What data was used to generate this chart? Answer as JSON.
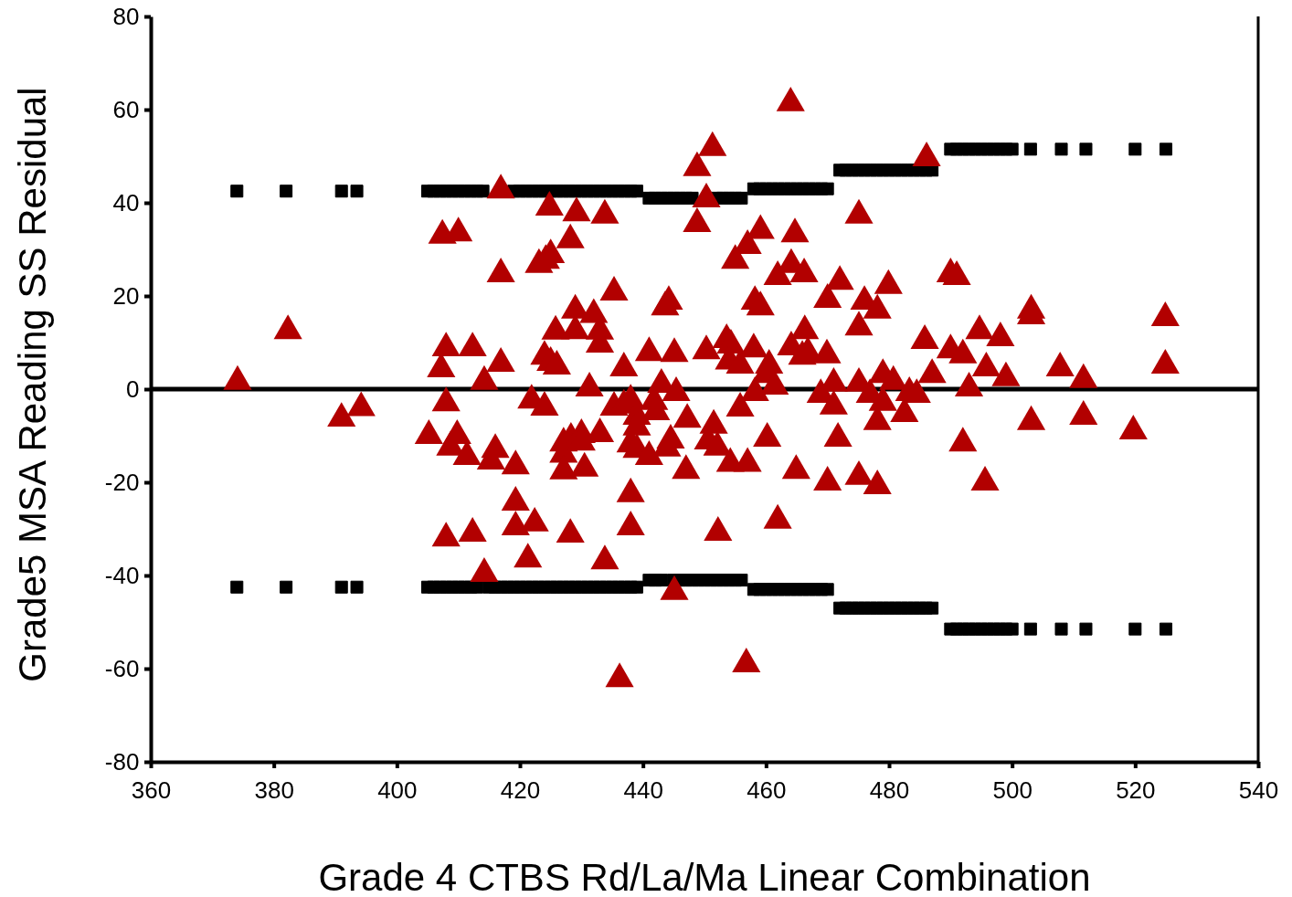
{
  "chart_data": {
    "type": "scatter",
    "xlabel": "Grade 4 CTBS Rd/La/Ma Linear Combination",
    "ylabel": "Grade5 MSA Reading SS Residual",
    "xlim": [
      360,
      540
    ],
    "ylim": [
      -80,
      80
    ],
    "xticks": [
      360,
      380,
      400,
      420,
      440,
      460,
      480,
      500,
      520,
      540
    ],
    "yticks": [
      -80,
      -60,
      -40,
      -20,
      0,
      20,
      40,
      60,
      80
    ],
    "grid": false,
    "ref_lines": [
      {
        "axis": "y",
        "value": 0,
        "color": "#000000",
        "line_style": "solid"
      }
    ],
    "series": [
      {
        "marker": "triangle",
        "color": "#b20000",
        "x": [
          374.1,
          382.3,
          391,
          394.2,
          405.2,
          407.2,
          407.4,
          410,
          408,
          408,
          408.7,
          409.8,
          408,
          412.3,
          411.4,
          412.3,
          414.2,
          415.3,
          416,
          414.2,
          416.9,
          416.9,
          416.9,
          419.3,
          419.3,
          419.3,
          422.4,
          421.3,
          421.9,
          424,
          423.1,
          424.2,
          425,
          424.8,
          424,
          425,
          426,
          425.8,
          428.2,
          429.2,
          429,
          429,
          427.1,
          427.1,
          427.1,
          428.3,
          430,
          430.5,
          428.2,
          430,
          431.3,
          432,
          433,
          433,
          433,
          433.8,
          435.3,
          433.8,
          436.9,
          435.3,
          436.9,
          438,
          439,
          438,
          439,
          439,
          438,
          438,
          436.2,
          441,
          441,
          441.8,
          442.1,
          443,
          443.6,
          444.2,
          443.9,
          444.5,
          445.4,
          445.1,
          445.1,
          447.2,
          447,
          448.8,
          448.8,
          450.3,
          450.3,
          451.3,
          450.6,
          451.5,
          452.1,
          452.2,
          453.6,
          454.3,
          454,
          455,
          455.8,
          455.8,
          454.2,
          457,
          457,
          456.8,
          458,
          458.2,
          459.1,
          459.1,
          458.2,
          460,
          460.5,
          461.4,
          460.2,
          461.9,
          461.9,
          464,
          464.1,
          464.7,
          466.2,
          464.1,
          465.9,
          466.3,
          464.9,
          466.8,
          468.9,
          470,
          469.9,
          470,
          471,
          471,
          472,
          471.7,
          475.1,
          475.1,
          475.1,
          476,
          475.1,
          476.9,
          478.1,
          478.1,
          478.1,
          479,
          479,
          479.9,
          480.7,
          482.5,
          483.3,
          485.8,
          486.1,
          487,
          484.5,
          490,
          491,
          490,
          492,
          492,
          493,
          494.7,
          495.8,
          495.6,
          498.1,
          499,
          503.1,
          503.1,
          503.1,
          507.8,
          511.6,
          511.6,
          519.7,
          524.9,
          524.9
        ],
        "values": [
          1.6,
          12.5,
          -6.3,
          -4,
          -10,
          4.3,
          33,
          33.5,
          8.8,
          -3,
          -12.5,
          -10,
          -32,
          8.8,
          -14.5,
          -31,
          1.6,
          -15.5,
          -13,
          -39.6,
          42.7,
          24.7,
          5.5,
          -16.5,
          -24.3,
          -29.6,
          -28.8,
          -36.5,
          -2.4,
          -3.9,
          26.7,
          27.6,
          28.8,
          39,
          7,
          5.7,
          4.9,
          12.4,
          32,
          37.8,
          16.9,
          12.5,
          -11.6,
          -14,
          -17.6,
          -10.6,
          -9.8,
          -17,
          -31.2,
          -11.4,
          0.2,
          16,
          12.4,
          9.6,
          -9.6,
          37.3,
          20.8,
          -36.9,
          4.5,
          -3.9,
          -3.5,
          -2.4,
          -5.9,
          -11.8,
          -8.2,
          -13,
          -22.5,
          -29.6,
          -62.2,
          7.8,
          -14.5,
          -2.7,
          -4.9,
          1,
          17.6,
          18.8,
          -12.7,
          -11,
          -0.8,
          7.6,
          -43.5,
          -6.5,
          -17.5,
          35.5,
          47.5,
          8.2,
          40.8,
          51.8,
          -11.2,
          -7.8,
          -12.5,
          -30.8,
          10.6,
          9.4,
          6,
          27.6,
          5.1,
          -4.1,
          -16,
          -16,
          30.8,
          -59,
          8.6,
          18.8,
          17.6,
          34,
          -0.8,
          3.1,
          5.1,
          0.6,
          -10.6,
          -28.2,
          24.1,
          61.4,
          26.7,
          33.3,
          24.7,
          9,
          7,
          12.5,
          -17.5,
          7.8,
          -1.2,
          19.2,
          7.3,
          -20,
          1.2,
          -3.7,
          23.1,
          -10.6,
          13.3,
          37.3,
          1.2,
          18.8,
          -18.8,
          -1.2,
          16.9,
          -7,
          -20.8,
          3.1,
          -2.9,
          22.2,
          1.6,
          -5.3,
          -0.8,
          10.4,
          49.6,
          3.1,
          -1.2,
          24.7,
          24.1,
          8.4,
          7.3,
          -11.6,
          0.2,
          12.5,
          4.5,
          -20,
          11,
          2.4,
          16.9,
          15.7,
          -7,
          4.5,
          2,
          -5.9,
          -9,
          15.3,
          5.1
        ]
      },
      {
        "marker": "square",
        "color": "#000000",
        "x": [
          374,
          382,
          391,
          393.5,
          405,
          406,
          407,
          408,
          409,
          410,
          411,
          412,
          413,
          414,
          419,
          420,
          421,
          422,
          423,
          424,
          425,
          426,
          427,
          428,
          429,
          430,
          431,
          432,
          433,
          434,
          435,
          436,
          437,
          438,
          439,
          441,
          442,
          443,
          444,
          445,
          446,
          447,
          448,
          452,
          453,
          454,
          455,
          456,
          458,
          459,
          460,
          461,
          462,
          463,
          464,
          465,
          466,
          467,
          468,
          469,
          470,
          472,
          473,
          474,
          475,
          476,
          477,
          478,
          479,
          480,
          481,
          482,
          483,
          484,
          485,
          486,
          487,
          490,
          491,
          492,
          493,
          494,
          495,
          496,
          497,
          498,
          499,
          500,
          503,
          508,
          512,
          520,
          525
        ],
        "values": [
          42.5,
          42.5,
          42.5,
          42.5,
          42.5,
          42.5,
          42.5,
          42.5,
          42.5,
          42.5,
          42.5,
          42.5,
          42.5,
          42.5,
          42.5,
          42.5,
          42.5,
          42.5,
          42.5,
          42.5,
          42.5,
          42.5,
          42.5,
          42.5,
          42.5,
          42.5,
          42.5,
          42.5,
          42.5,
          42.5,
          42.5,
          42.5,
          42.5,
          42.5,
          42.5,
          41,
          41,
          41,
          41,
          41,
          41,
          41,
          41,
          41,
          41,
          41,
          41,
          41,
          43,
          43,
          43,
          43,
          43,
          43,
          43,
          43,
          43,
          43,
          43,
          43,
          43,
          47,
          47,
          47,
          47,
          47,
          47,
          47,
          47,
          47,
          47,
          47,
          47,
          47,
          47,
          47,
          47,
          51.5,
          51.5,
          51.5,
          51.5,
          51.5,
          51.5,
          51.5,
          51.5,
          51.5,
          51.5,
          51.5,
          51.5,
          51.5,
          51.5,
          51.5,
          51.5
        ]
      },
      {
        "marker": "square",
        "color": "#000000",
        "x": [
          374,
          382,
          391,
          393.5,
          405,
          406,
          407,
          408,
          409,
          410,
          411,
          412,
          413,
          415,
          416,
          417,
          418,
          419,
          420,
          421,
          422,
          423,
          424,
          425,
          426,
          427,
          428,
          429,
          430,
          431,
          432,
          433,
          434,
          435,
          436,
          437,
          438,
          439,
          441,
          442,
          443,
          445,
          446,
          447,
          448,
          449,
          450,
          451,
          452,
          453,
          454,
          455,
          456,
          458,
          459,
          460,
          461,
          462,
          463,
          464,
          465,
          466,
          467,
          468,
          469,
          470,
          472,
          473,
          474,
          475,
          476,
          477,
          478,
          479,
          480,
          481,
          482,
          483,
          484,
          485,
          486,
          487,
          490,
          491,
          492,
          493,
          494,
          495,
          496,
          497,
          498,
          499,
          500,
          503,
          508,
          512,
          520,
          525
        ],
        "values": [
          -42.5,
          -42.5,
          -42.5,
          -42.5,
          -42.5,
          -42.5,
          -42.5,
          -42.5,
          -42.5,
          -42.5,
          -42.5,
          -42.5,
          -42.5,
          -42.5,
          -42.5,
          -42.5,
          -42.5,
          -42.5,
          -42.5,
          -42.5,
          -42.5,
          -42.5,
          -42.5,
          -42.5,
          -42.5,
          -42.5,
          -42.5,
          -42.5,
          -42.5,
          -42.5,
          -42.5,
          -42.5,
          -42.5,
          -42.5,
          -42.5,
          -42.5,
          -42.5,
          -42.5,
          -41,
          -41,
          -41,
          -41,
          -41,
          -41,
          -41,
          -41,
          -41,
          -41,
          -41,
          -41,
          -41,
          -41,
          -41,
          -43,
          -43,
          -43,
          -43,
          -43,
          -43,
          -43,
          -43,
          -43,
          -43,
          -43,
          -43,
          -43,
          -47,
          -47,
          -47,
          -47,
          -47,
          -47,
          -47,
          -47,
          -47,
          -47,
          -47,
          -47,
          -47,
          -47,
          -47,
          -47,
          -51.5,
          -51.5,
          -51.5,
          -51.5,
          -51.5,
          -51.5,
          -51.5,
          -51.5,
          -51.5,
          -51.5,
          -51.5,
          -51.5,
          -51.5,
          -51.5,
          -51.5,
          -51.5
        ]
      }
    ]
  }
}
